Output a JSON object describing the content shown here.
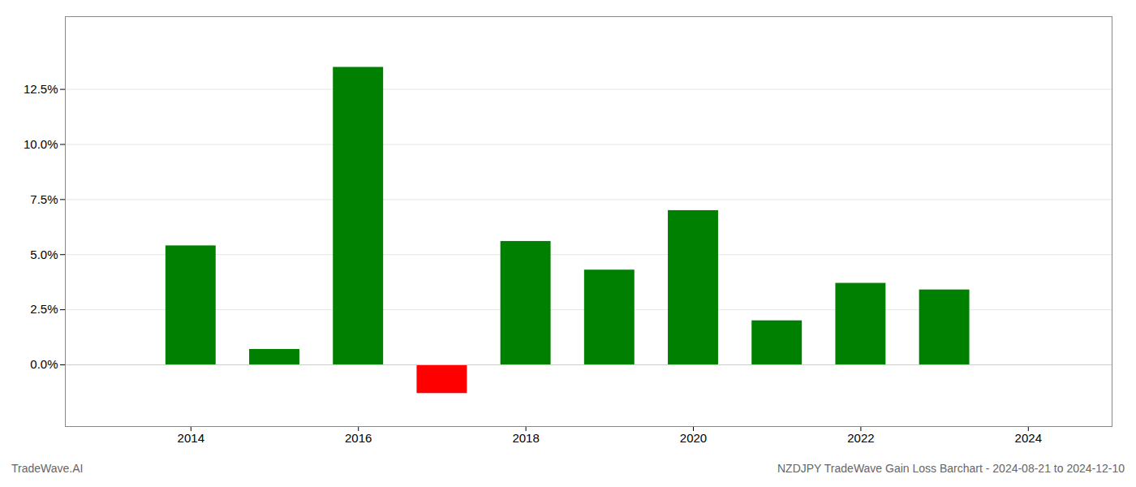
{
  "chart_data": {
    "type": "bar",
    "x": [
      2014,
      2015,
      2016,
      2017,
      2018,
      2019,
      2020,
      2021,
      2022,
      2023
    ],
    "values": [
      0.054,
      0.007,
      0.135,
      -0.013,
      0.056,
      0.043,
      0.07,
      0.02,
      0.037,
      0.034
    ],
    "colors": [
      "#008000",
      "#008000",
      "#008000",
      "#ff0000",
      "#008000",
      "#008000",
      "#008000",
      "#008000",
      "#008000",
      "#008000"
    ],
    "xlim": [
      2012.5,
      2025.0
    ],
    "xticks": [
      2014,
      2016,
      2018,
      2020,
      2022,
      2024
    ],
    "ylim": [
      -0.028,
      0.158
    ],
    "yticks": [
      {
        "value": 0.0,
        "label": "0.0%"
      },
      {
        "value": 0.025,
        "label": "2.5%"
      },
      {
        "value": 0.05,
        "label": "5.0%"
      },
      {
        "value": 0.075,
        "label": "7.5%"
      },
      {
        "value": 0.1,
        "label": "10.0%"
      },
      {
        "value": 0.125,
        "label": "12.5%"
      }
    ],
    "grid": true,
    "annotations": [
      "TradeWave.AI",
      "NZDJPY TradeWave Gain Loss Barchart - 2024-08-21 to 2024-12-10"
    ]
  }
}
